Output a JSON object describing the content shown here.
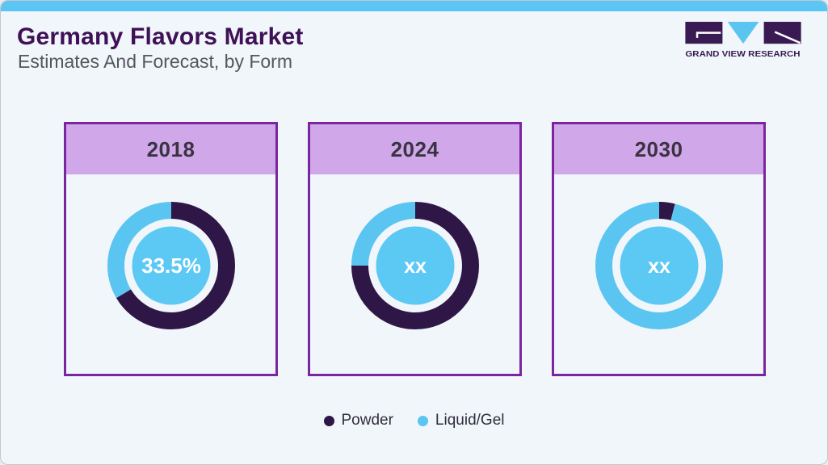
{
  "page": {
    "title": "Germany Flavors Market",
    "subtitle": "Estimates And Forecast, by Form",
    "logo": {
      "text": "GRAND VIEW RESEARCH"
    },
    "legend": [
      {
        "label": "Powder",
        "color": "#2e1646"
      },
      {
        "label": "Liquid/Gel",
        "color": "#5bc5f2"
      }
    ]
  },
  "colors": {
    "page_background": "#f1f6fa",
    "top_bar": "#5bc6f3",
    "title_purple": "#3f1156",
    "subtitle_gray": "#54575b",
    "card_border": "#7b26a0",
    "card_header_bg": "#d0a7e9",
    "powder_dark_purple": "#2e1646",
    "liquid_gel_blue": "#5bc5f2",
    "inner_circle_blue": "#5cc8f4",
    "logo_purple": "#3a1a52"
  },
  "chart_data": [
    {
      "type": "pie",
      "title": "2018",
      "center_label": "33.5%",
      "donut": true,
      "start": "top",
      "direction": "clockwise",
      "segments": [
        {
          "name": "Powder",
          "value": 66.5,
          "color": "#2e1646",
          "estimated": false
        },
        {
          "name": "Liquid/Gel",
          "value": 33.5,
          "color": "#5bc5f2",
          "estimated": false
        }
      ]
    },
    {
      "type": "pie",
      "title": "2024",
      "center_label": "xx",
      "donut": true,
      "start": "top",
      "direction": "clockwise",
      "segments": [
        {
          "name": "Powder",
          "value": 75,
          "color": "#2e1646",
          "estimated": true
        },
        {
          "name": "Liquid/Gel",
          "value": 25,
          "color": "#5bc5f2",
          "estimated": true
        }
      ]
    },
    {
      "type": "pie",
      "title": "2030",
      "center_label": "xx",
      "donut": true,
      "start": "top",
      "direction": "clockwise",
      "segments": [
        {
          "name": "Powder",
          "value": 4,
          "color": "#2e1646",
          "estimated": true
        },
        {
          "name": "Liquid/Gel",
          "value": 96,
          "color": "#5bc5f2",
          "estimated": true
        }
      ]
    }
  ]
}
